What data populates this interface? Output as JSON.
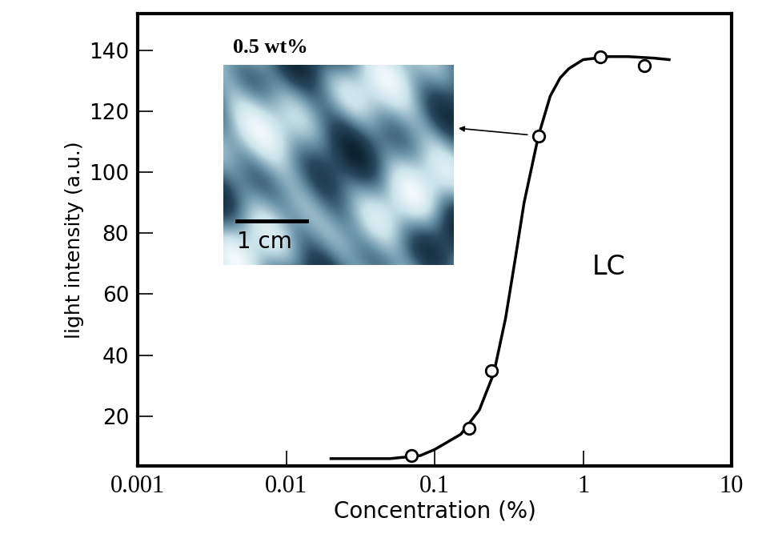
{
  "chart_data": {
    "type": "scatter",
    "x_label": "Concentration (%)",
    "y_label": "light intensity (a.u.)",
    "log": "x",
    "grid": false,
    "xlim": [
      0.001,
      10
    ],
    "xticks": [
      0.001,
      0.01,
      0.1,
      1,
      10
    ],
    "ylim": [
      3.6,
      152
    ],
    "yticks": [
      20,
      40,
      60,
      80,
      100,
      120,
      140
    ],
    "series": [
      {
        "type": "scatter",
        "marker": "o",
        "color": "#000000",
        "x": [
          0.07,
          0.17,
          0.24,
          0.5,
          1.3,
          2.6
        ],
        "values": [
          7,
          16,
          35,
          112,
          138,
          135
        ]
      },
      {
        "type": "line",
        "line_style": "solid",
        "color": "#000000",
        "x": [
          0.02,
          0.05,
          0.08,
          0.1,
          0.15,
          0.2,
          0.25,
          0.3,
          0.35,
          0.4,
          0.5,
          0.6,
          0.7,
          0.8,
          1,
          1.5,
          2,
          3,
          3.8
        ],
        "values": [
          6,
          6,
          7,
          9,
          14,
          22,
          34,
          52,
          72,
          90,
          112,
          125,
          131,
          134,
          137,
          138,
          138,
          137.5,
          137
        ]
      }
    ],
    "inset_label": "0.5 wt%",
    "scale_bar_label": "1 cm",
    "region_label": "LC"
  }
}
